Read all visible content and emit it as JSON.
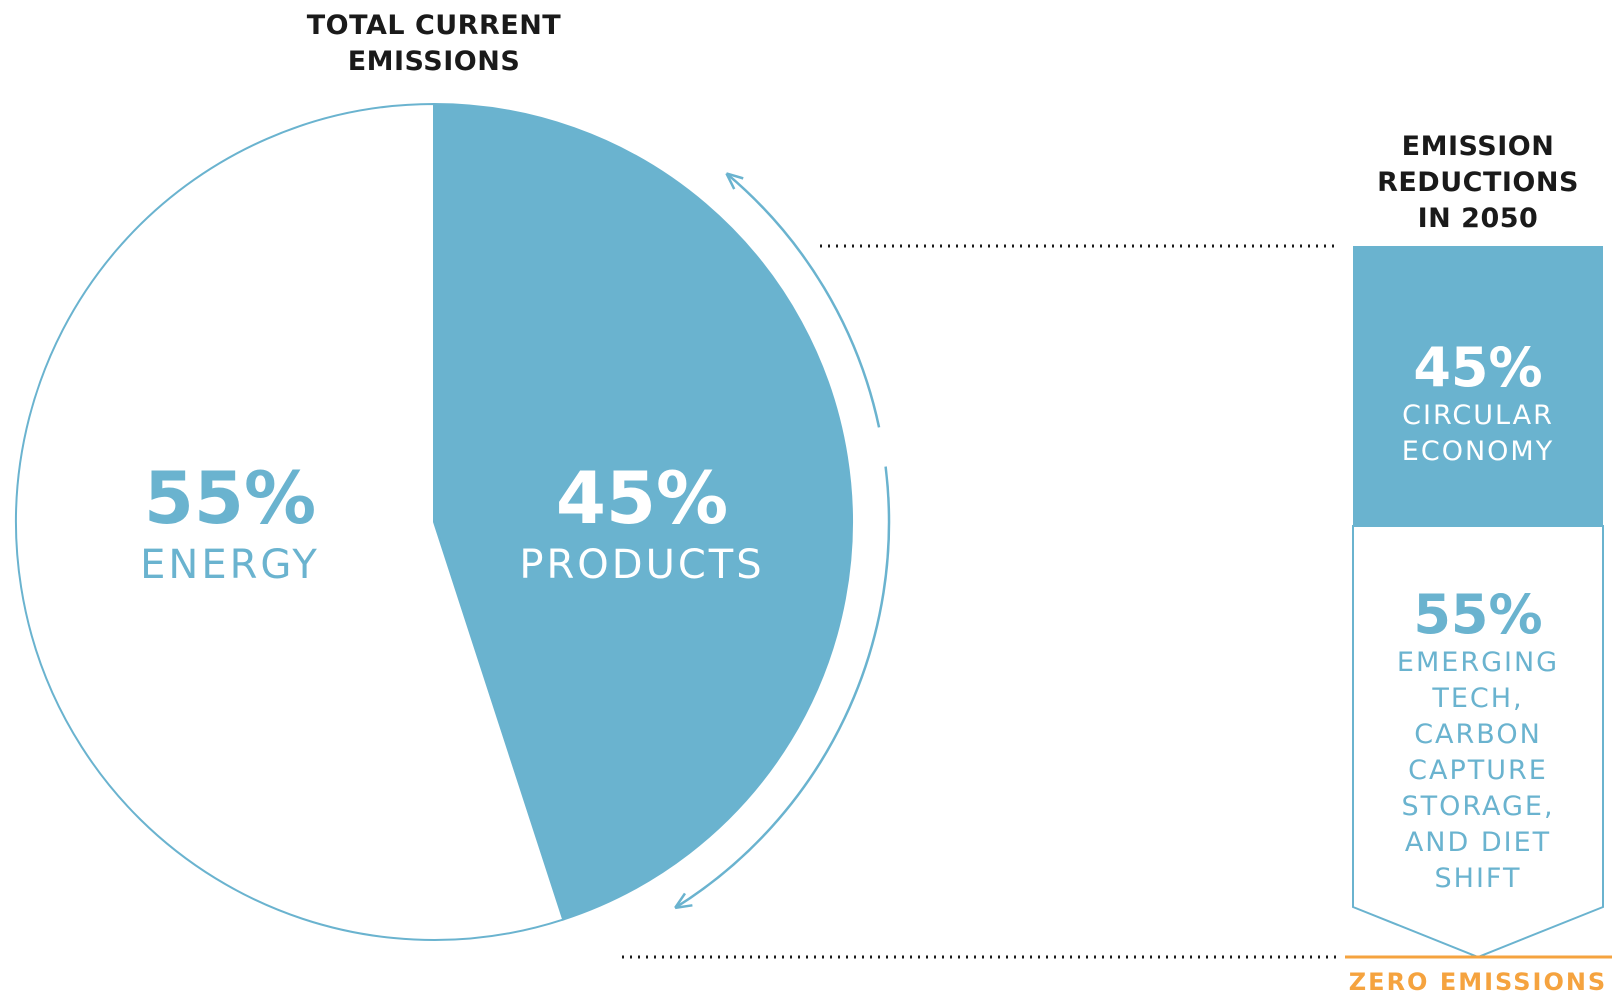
{
  "colors": {
    "accent": "#6ab3cf",
    "outline": "#6ab3cf",
    "text_dark": "#1a1a1a",
    "white": "#ffffff",
    "zero_line": "#f5a33f",
    "dots": "#1a1a1a"
  },
  "chart_data": [
    {
      "type": "pie",
      "title_lines": [
        "TOTAL CURRENT",
        "EMISSIONS"
      ],
      "slices": [
        {
          "label": "PRODUCTS",
          "value": 45,
          "value_text": "45%",
          "color": "#6ab3cf",
          "text_color": "#ffffff"
        },
        {
          "label": "ENERGY",
          "value": 55,
          "value_text": "55%",
          "color": "#ffffff",
          "text_color": "#6ab3cf"
        }
      ]
    },
    {
      "type": "bar",
      "stacked": true,
      "title_lines": [
        "EMISSION",
        "REDUCTIONS",
        "IN 2050"
      ],
      "segments": [
        {
          "value": 45,
          "value_text": "45%",
          "label_lines": [
            "CIRCULAR",
            "ECONOMY"
          ],
          "color": "#6ab3cf",
          "text_color": "#ffffff"
        },
        {
          "value": 55,
          "value_text": "55%",
          "label_lines": [
            "EMERGING",
            "TECH,",
            "CARBON",
            "CAPTURE",
            "STORAGE,",
            "AND DIET",
            "SHIFT"
          ],
          "color": "#ffffff",
          "text_color": "#6ab3cf"
        }
      ],
      "baseline_label": "ZERO EMISSIONS"
    }
  ]
}
